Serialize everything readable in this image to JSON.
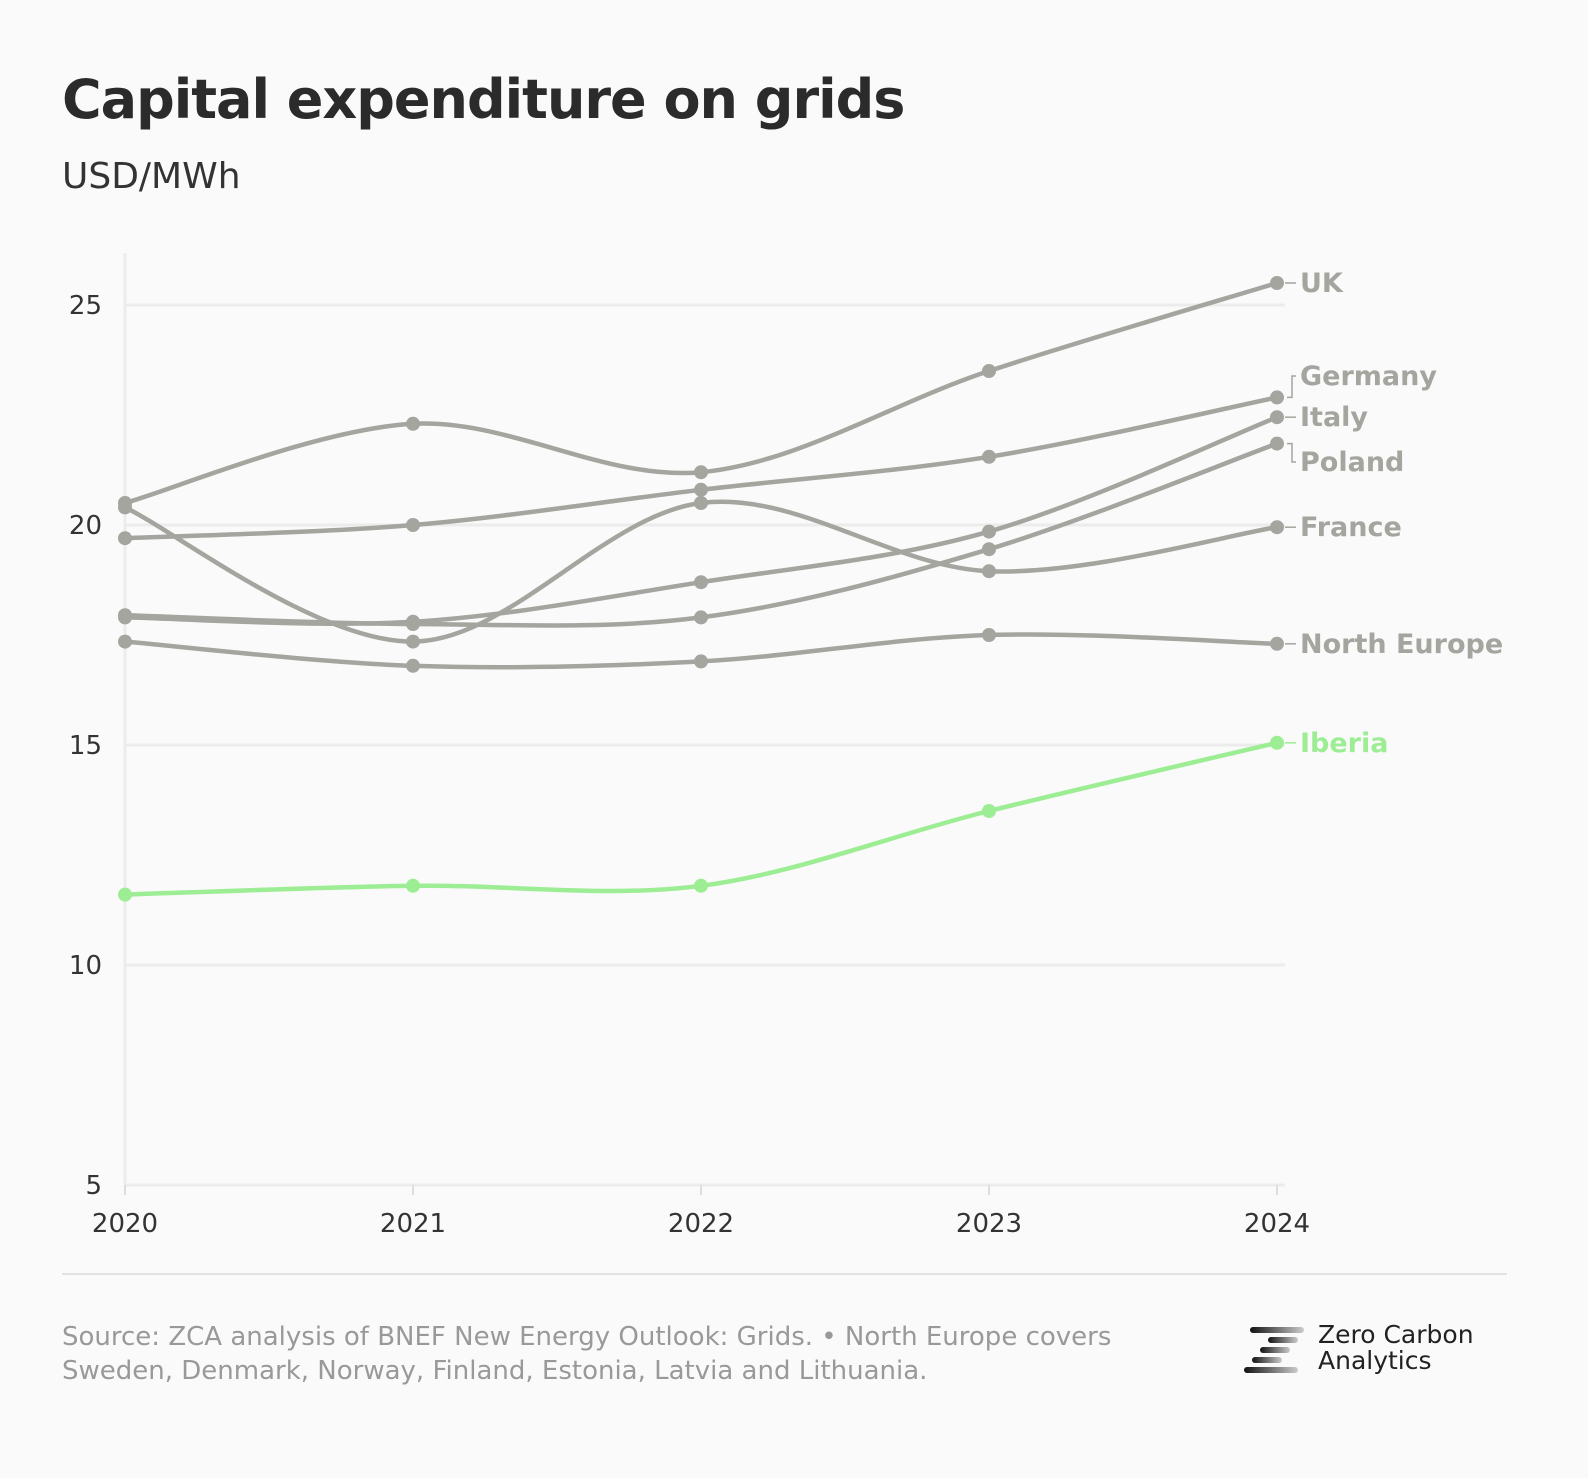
{
  "chart_data": {
    "type": "line",
    "title": "Capital expenditure on grids",
    "subtitle": "USD/MWh",
    "x": [
      "2020",
      "2021",
      "2022",
      "2023",
      "2024"
    ],
    "ylim": [
      5,
      26.5
    ],
    "yticks": [
      5,
      10,
      15,
      20,
      25
    ],
    "grid": true,
    "legend": "direct labels at line ends (right)",
    "series": [
      {
        "name": "UK",
        "values": [
          20.5,
          22.3,
          21.2,
          23.5,
          25.5
        ],
        "color": "#a3a59e"
      },
      {
        "name": "Germany",
        "values": [
          19.7,
          20.0,
          20.8,
          21.55,
          22.9
        ],
        "color": "#a3a59e"
      },
      {
        "name": "Italy",
        "values": [
          17.9,
          17.8,
          18.7,
          19.85,
          22.45
        ],
        "color": "#a3a59e"
      },
      {
        "name": "Poland",
        "values": [
          17.95,
          17.75,
          17.9,
          19.45,
          21.85
        ],
        "color": "#a3a59e"
      },
      {
        "name": "France",
        "values": [
          20.4,
          17.35,
          20.5,
          18.95,
          19.95
        ],
        "color": "#a3a59e"
      },
      {
        "name": "North Europe",
        "values": [
          17.35,
          16.8,
          16.9,
          17.5,
          17.3
        ],
        "color": "#a3a59e"
      },
      {
        "name": "Iberia",
        "values": [
          11.6,
          11.8,
          11.8,
          13.5,
          15.05
        ],
        "color": "#9ded94"
      }
    ]
  },
  "footer": {
    "source": "Source: ZCA analysis of BNEF New Energy Outlook: Grids. • North Europe covers Sweden, Denmark, Norway, Finland, Estonia, Latvia and Lithuania.",
    "logo_text_1": "Zero Carbon",
    "logo_text_2": "Analytics"
  }
}
